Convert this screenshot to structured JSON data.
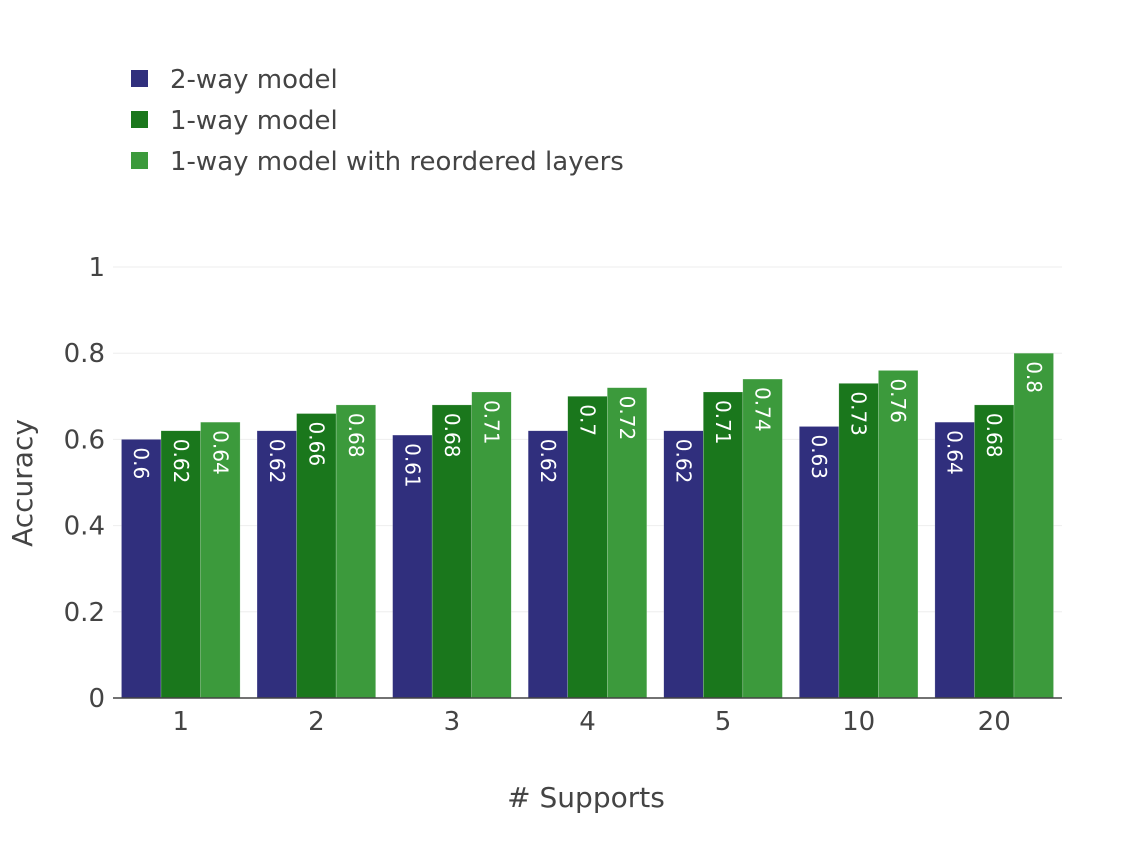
{
  "chart_data": {
    "type": "bar",
    "categories": [
      "1",
      "2",
      "3",
      "4",
      "5",
      "10",
      "20"
    ],
    "series": [
      {
        "name": "2-way model",
        "color": "#302f7d",
        "values": [
          0.6,
          0.62,
          0.61,
          0.62,
          0.62,
          0.63,
          0.64
        ]
      },
      {
        "name": "1-way model",
        "color": "#1a771c",
        "values": [
          0.62,
          0.66,
          0.68,
          0.7,
          0.71,
          0.73,
          0.68
        ]
      },
      {
        "name": "1-way model with reordered layers",
        "color": "#3c9a3c",
        "values": [
          0.64,
          0.68,
          0.71,
          0.72,
          0.74,
          0.76,
          0.8
        ]
      }
    ],
    "xlabel": "# Supports",
    "ylabel": "Accuracy",
    "ylim": [
      0,
      1
    ],
    "yticks": [
      0,
      0.2,
      0.4,
      0.6,
      0.8,
      1
    ],
    "ytick_labels": [
      "0",
      "0.2",
      "0.4",
      "0.6",
      "0.8",
      "1"
    ],
    "grid": true,
    "legend_position": "top-left",
    "data_labels": "inside-rotated"
  }
}
